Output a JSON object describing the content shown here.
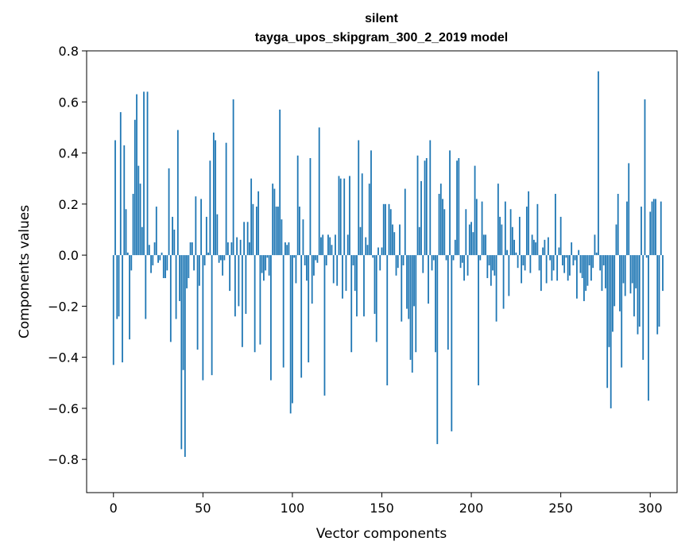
{
  "chart_data": {
    "type": "bar",
    "title": "silent",
    "subtitle": "tayga_upos_skipgram_300_2_2019 model",
    "xlabel": "Vector components",
    "ylabel": "Components values",
    "xlim": [
      -15,
      315
    ],
    "ylim": [
      -0.93,
      0.8
    ],
    "xticks": [
      0,
      50,
      100,
      150,
      200,
      250,
      300
    ],
    "yticks": [
      -0.8,
      -0.6,
      -0.4,
      -0.2,
      0.0,
      0.2,
      0.4,
      0.6,
      0.8
    ],
    "xtick_labels": [
      "0",
      "50",
      "100",
      "150",
      "200",
      "250",
      "300"
    ],
    "ytick_labels": [
      "−0.8",
      "−0.6",
      "−0.4",
      "−0.2",
      "0.0",
      "0.2",
      "0.4",
      "0.6",
      "0.8"
    ],
    "grid": false,
    "bar_color": "#1f77b4",
    "series": [
      {
        "values": [
          -0.43,
          0.45,
          -0.25,
          -0.24,
          0.56,
          -0.42,
          0.43,
          0.18,
          0.01,
          -0.33,
          -0.06,
          0.24,
          0.53,
          0.63,
          0.35,
          0.28,
          0.11,
          0.64,
          -0.25,
          0.64,
          0.04,
          -0.07,
          -0.04,
          0.05,
          0.19,
          -0.03,
          -0.02,
          0.01,
          -0.09,
          -0.09,
          -0.06,
          0.34,
          -0.34,
          0.15,
          0.1,
          -0.25,
          0.49,
          -0.18,
          -0.76,
          -0.45,
          -0.79,
          -0.13,
          -0.09,
          0.05,
          0.05,
          -0.06,
          0.23,
          -0.37,
          -0.12,
          0.22,
          -0.49,
          -0.04,
          0.15,
          0.01,
          0.37,
          -0.47,
          0.48,
          0.45,
          0.16,
          -0.03,
          -0.02,
          -0.08,
          -0.02,
          0.44,
          0.05,
          -0.14,
          0.05,
          0.61,
          -0.24,
          0.07,
          -0.2,
          0.06,
          -0.36,
          0.13,
          -0.23,
          0.13,
          0.05,
          0.3,
          0.2,
          -0.38,
          0.19,
          0.25,
          -0.35,
          -0.07,
          -0.1,
          -0.06,
          -0.01,
          -0.08,
          -0.49,
          0.28,
          0.26,
          0.19,
          0.19,
          0.57,
          0.14,
          -0.44,
          0.05,
          0.04,
          0.05,
          -0.62,
          -0.58,
          -0.01,
          -0.11,
          0.39,
          0.19,
          -0.48,
          0.14,
          -0.04,
          -0.1,
          -0.42,
          0.38,
          -0.19,
          -0.08,
          -0.02,
          -0.03,
          0.5,
          0.07,
          0.08,
          -0.55,
          -0.04,
          0.08,
          0.07,
          0.04,
          -0.11,
          0.08,
          -0.12,
          0.31,
          0.3,
          -0.17,
          0.3,
          -0.14,
          0.08,
          0.31,
          -0.38,
          -0.04,
          -0.14,
          -0.24,
          0.45,
          0.11,
          0.32,
          -0.24,
          0.07,
          0.04,
          0.28,
          0.41,
          -0.01,
          -0.23,
          -0.34,
          0.03,
          -0.06,
          0.03,
          0.2,
          0.2,
          -0.51,
          0.2,
          0.18,
          0.12,
          0.09,
          -0.08,
          -0.05,
          0.12,
          -0.26,
          -0.04,
          0.26,
          -0.21,
          -0.25,
          -0.41,
          -0.46,
          -0.2,
          -0.38,
          0.39,
          0.11,
          0.29,
          -0.07,
          0.37,
          0.38,
          -0.19,
          0.45,
          -0.06,
          -0.02,
          -0.38,
          -0.74,
          0.24,
          0.28,
          0.22,
          0.18,
          -0.02,
          -0.37,
          0.41,
          -0.69,
          -0.02,
          0.06,
          0.37,
          0.38,
          -0.05,
          -0.03,
          -0.1,
          0.18,
          -0.08,
          0.12,
          0.13,
          0.09,
          0.35,
          0.22,
          -0.51,
          -0.02,
          0.21,
          0.08,
          0.08,
          -0.09,
          -0.04,
          -0.12,
          -0.06,
          -0.08,
          -0.26,
          0.28,
          0.15,
          0.12,
          -0.21,
          0.21,
          0.02,
          -0.16,
          0.18,
          0.11,
          0.06,
          0.01,
          -0.05,
          0.15,
          -0.11,
          -0.04,
          -0.06,
          0.19,
          0.25,
          -0.07,
          0.08,
          0.06,
          0.05,
          0.2,
          -0.06,
          -0.14,
          0.03,
          0.06,
          -0.11,
          0.07,
          -0.02,
          -0.1,
          -0.06,
          0.24,
          -0.1,
          0.03,
          0.15,
          -0.04,
          -0.07,
          -0.01,
          -0.1,
          -0.08,
          0.05,
          -0.04,
          -0.02,
          -0.17,
          0.02,
          -0.07,
          -0.09,
          -0.18,
          -0.14,
          -0.12,
          -0.04,
          -0.1,
          -0.05,
          0.08,
          0.01,
          0.72,
          -0.06,
          -0.14,
          -0.04,
          -0.13,
          -0.52,
          -0.36,
          -0.6,
          -0.3,
          -0.2,
          0.12,
          0.24,
          -0.22,
          -0.44,
          -0.11,
          -0.16,
          0.21,
          0.36,
          -0.15,
          -0.11,
          -0.24,
          -0.13,
          -0.31,
          -0.28,
          0.19,
          -0.41,
          0.61,
          -0.01,
          -0.57,
          0.17,
          0.21,
          0.22,
          0.22,
          -0.31,
          -0.28,
          0.21,
          -0.14
        ]
      }
    ]
  }
}
